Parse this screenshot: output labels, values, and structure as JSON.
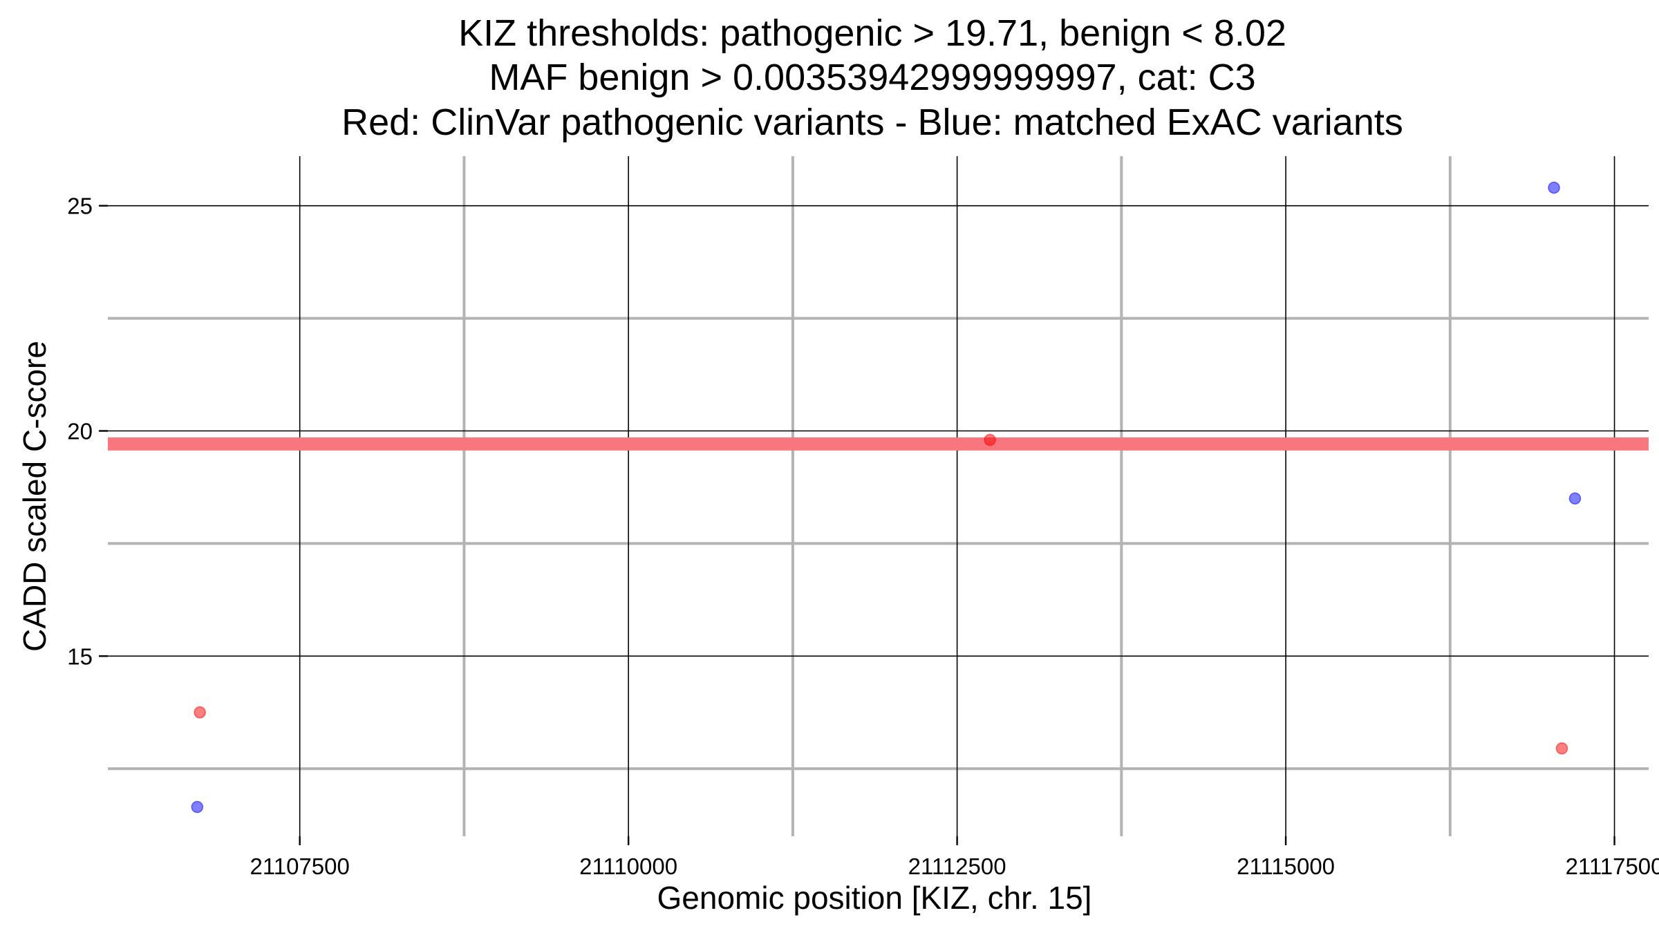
{
  "chart_data": {
    "type": "scatter",
    "title_lines": [
      "KIZ thresholds: pathogenic > 19.71, benign < 8.02",
      "MAF benign > 0.00353942999999997, cat: C3",
      "Red: ClinVar pathogenic variants - Blue: matched ExAC variants"
    ],
    "xlabel": "Genomic position [KIZ, chr. 15]",
    "ylabel": "CADD scaled C-score",
    "xlim": [
      21106040,
      21117760
    ],
    "ylim": [
      11.0,
      26.1
    ],
    "x_major_ticks": [
      21107500,
      21110000,
      21112500,
      21115000,
      21117500
    ],
    "x_tick_labels": [
      "21107500",
      "21110000",
      "21112500",
      "21115000",
      "21117500"
    ],
    "x_minor_grid": [
      21108750,
      21111250,
      21113750,
      21116250
    ],
    "y_major_ticks": [
      15,
      20,
      25
    ],
    "y_tick_labels": [
      "15",
      "20",
      "25"
    ],
    "y_minor_grid": [
      12.5,
      17.5,
      22.5
    ],
    "threshold_line": {
      "y": 19.71,
      "color": "#f8767d"
    },
    "series": [
      {
        "color": "#ff0000",
        "points": [
          {
            "x": 21106740,
            "y": 13.75
          },
          {
            "x": 21112750,
            "y": 19.8
          },
          {
            "x": 21117100,
            "y": 12.95
          }
        ]
      },
      {
        "color": "#0000ff",
        "points": [
          {
            "x": 21106720,
            "y": 11.65
          },
          {
            "x": 21117040,
            "y": 25.4
          },
          {
            "x": 21117200,
            "y": 18.5
          }
        ]
      }
    ],
    "grid": true
  }
}
